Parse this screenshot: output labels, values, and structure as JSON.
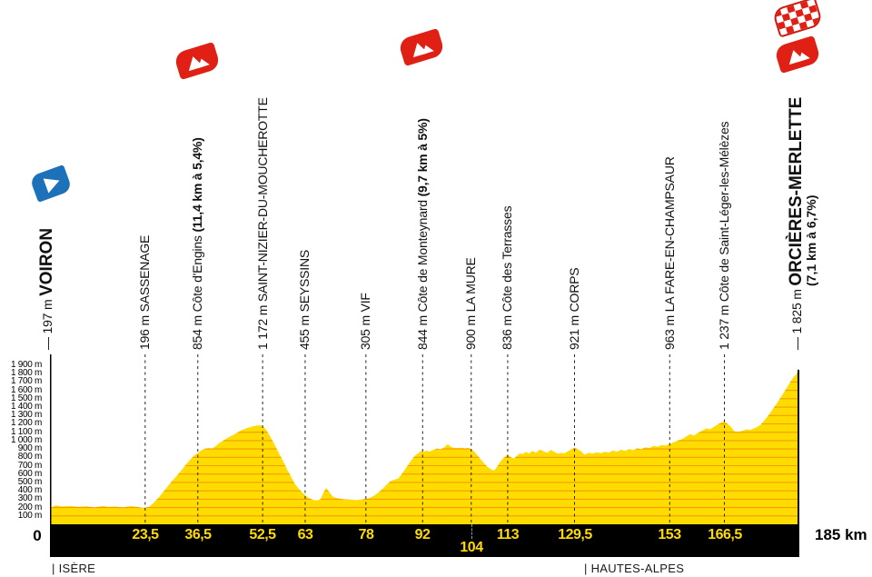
{
  "chart_data": {
    "type": "area",
    "x_unit": "km",
    "y_unit": "m",
    "x_range": [
      0,
      185
    ],
    "grid": "horizontal-100m",
    "legend": "none",
    "start_label": "0",
    "end_label": "185 km",
    "departments": [
      {
        "label": "| ISÈRE",
        "at_km": 0
      },
      {
        "label": "| HAUTES-ALPES",
        "at_km": 132
      }
    ],
    "colors": {
      "profile_fill": "#FFDC00",
      "gridline_on_fill": "#F59C00",
      "bar_background": "#000000",
      "bar_text": "#FFDB00",
      "climb_badge_red": "#E02015",
      "start_badge_blue": "#1D71B8",
      "dashed_line": "#222222"
    },
    "y_tick_values_m": [
      1900,
      1800,
      1700,
      1600,
      1500,
      1400,
      1300,
      1200,
      1100,
      1000,
      900,
      800,
      700,
      600,
      500,
      400,
      300,
      200,
      100
    ],
    "y_tick_labels": [
      "1 900 m",
      "1 800 m",
      "1 700 m",
      "1 600 m",
      "1 500 m",
      "1 400 m",
      "1 300 m",
      "1 200 m",
      "1 100 m",
      "1 000 m",
      "900 m",
      "800 m",
      "700 m",
      "600 m",
      "500 m",
      "400 m",
      "300 m",
      "200 m",
      "100 m"
    ],
    "waypoints": [
      {
        "km": 0,
        "km_label": "0",
        "elevation": "197 m",
        "name": "VOIRON",
        "stats": null,
        "kind": "start",
        "icon": "start-flag"
      },
      {
        "km": 23.5,
        "km_label": "23,5",
        "elevation": "196 m",
        "name": "SASSENAGE",
        "stats": null,
        "kind": "town",
        "icon": null
      },
      {
        "km": 36.5,
        "km_label": "36,5",
        "elevation": "854 m",
        "name": "Côte d'Engins",
        "stats": "(11,4 km à 5,4%)",
        "kind": "climb",
        "icon": "mountain"
      },
      {
        "km": 52.5,
        "km_label": "52,5",
        "elevation": "1 172 m",
        "name": "SAINT-NIZIER-DU-MOUCHEROTTE",
        "stats": null,
        "kind": "town",
        "icon": null
      },
      {
        "km": 63,
        "km_label": "63",
        "elevation": "455 m",
        "name": "SEYSSINS",
        "stats": null,
        "kind": "town",
        "icon": null
      },
      {
        "km": 78,
        "km_label": "78",
        "elevation": "305 m",
        "name": "VIF",
        "stats": null,
        "kind": "town",
        "icon": null
      },
      {
        "km": 92,
        "km_label": "92",
        "elevation": "844 m",
        "name": "Côte de Monteynard",
        "stats": "(9,7 km à 5%)",
        "kind": "climb",
        "icon": "mountain"
      },
      {
        "km": 104,
        "km_label": "104",
        "km_label_row": 2,
        "elevation": "900 m",
        "name": "LA MURE",
        "stats": null,
        "kind": "town",
        "icon": null
      },
      {
        "km": 113,
        "km_label": "113",
        "elevation": "836 m",
        "name": "Côte des Terrasses",
        "stats": null,
        "kind": "town",
        "icon": null
      },
      {
        "km": 129.5,
        "km_label": "129,5",
        "elevation": "921 m",
        "name": "CORPS",
        "stats": null,
        "kind": "town",
        "icon": null
      },
      {
        "km": 153,
        "km_label": "153",
        "elevation": "963 m",
        "name": "LA FARE-EN-CHAMPSAUR",
        "stats": null,
        "kind": "town",
        "icon": null
      },
      {
        "km": 166.5,
        "km_label": "166,5",
        "elevation": "1 237 m",
        "name": "Côte de Saint-Léger-les-Mélèzes",
        "stats": null,
        "kind": "town",
        "icon": null
      },
      {
        "km": 185,
        "km_label": "185 km",
        "elevation": "1 825 m",
        "name": "ORCIÈRES-MERLETTE",
        "stats": "(7,1 km à 6,7%)",
        "kind": "finish",
        "icon": "finish-flag+mountain"
      }
    ],
    "profile_points": [
      [
        0,
        197
      ],
      [
        1.5,
        228
      ],
      [
        3,
        213
      ],
      [
        5,
        222
      ],
      [
        7,
        208
      ],
      [
        9,
        217
      ],
      [
        11,
        204
      ],
      [
        13,
        220
      ],
      [
        14.5,
        208
      ],
      [
        16,
        214
      ],
      [
        18,
        203
      ],
      [
        20,
        218
      ],
      [
        21.5,
        208
      ],
      [
        22.7,
        199
      ],
      [
        23.5,
        200
      ],
      [
        24.5,
        212
      ],
      [
        25.5,
        252
      ],
      [
        27,
        330
      ],
      [
        28.5,
        420
      ],
      [
        30,
        510
      ],
      [
        31.5,
        592
      ],
      [
        33,
        680
      ],
      [
        34.5,
        770
      ],
      [
        35.8,
        832
      ],
      [
        36.5,
        852
      ],
      [
        37.2,
        880
      ],
      [
        38.2,
        902
      ],
      [
        39.2,
        912
      ],
      [
        40,
        906
      ],
      [
        41,
        938
      ],
      [
        42,
        978
      ],
      [
        43,
        1008
      ],
      [
        44,
        1038
      ],
      [
        45,
        1062
      ],
      [
        46,
        1090
      ],
      [
        47,
        1118
      ],
      [
        48,
        1140
      ],
      [
        49,
        1156
      ],
      [
        50,
        1170
      ],
      [
        51,
        1180
      ],
      [
        52,
        1183
      ],
      [
        52.6,
        1172
      ],
      [
        53.5,
        1120
      ],
      [
        54.5,
        1040
      ],
      [
        55.5,
        950
      ],
      [
        56.4,
        862
      ],
      [
        57.5,
        762
      ],
      [
        58.5,
        662
      ],
      [
        59.5,
        572
      ],
      [
        60.5,
        482
      ],
      [
        61.5,
        420
      ],
      [
        62.3,
        380
      ],
      [
        63,
        352
      ],
      [
        64,
        312
      ],
      [
        65,
        292
      ],
      [
        66,
        286
      ],
      [
        66.8,
        300
      ],
      [
        67.5,
        378
      ],
      [
        68.2,
        438
      ],
      [
        69,
        382
      ],
      [
        69.8,
        332
      ],
      [
        71,
        312
      ],
      [
        72.5,
        300
      ],
      [
        74,
        296
      ],
      [
        75.5,
        290
      ],
      [
        77,
        296
      ],
      [
        78,
        306
      ],
      [
        79,
        318
      ],
      [
        80,
        342
      ],
      [
        81,
        378
      ],
      [
        82,
        420
      ],
      [
        83,
        470
      ],
      [
        84,
        515
      ],
      [
        85,
        535
      ],
      [
        86,
        548
      ],
      [
        87,
        612
      ],
      [
        88,
        682
      ],
      [
        89,
        752
      ],
      [
        90,
        818
      ],
      [
        91,
        852
      ],
      [
        91.7,
        880
      ],
      [
        92.3,
        868
      ],
      [
        93,
        882
      ],
      [
        93.7,
        870
      ],
      [
        94.5,
        888
      ],
      [
        95.5,
        905
      ],
      [
        96.5,
        898
      ],
      [
        97.3,
        918
      ],
      [
        98.2,
        958
      ],
      [
        98.9,
        932
      ],
      [
        99.6,
        915
      ],
      [
        100.5,
        912
      ],
      [
        101.5,
        916
      ],
      [
        102.5,
        908
      ],
      [
        103.2,
        913
      ],
      [
        104,
        900
      ],
      [
        105,
        858
      ],
      [
        106,
        798
      ],
      [
        107,
        738
      ],
      [
        108,
        688
      ],
      [
        109,
        655
      ],
      [
        109.7,
        645
      ],
      [
        110.5,
        698
      ],
      [
        111.3,
        758
      ],
      [
        112,
        795
      ],
      [
        112.5,
        812
      ],
      [
        113,
        836
      ],
      [
        113.8,
        800
      ],
      [
        114.5,
        786
      ],
      [
        115.3,
        820
      ],
      [
        116,
        850
      ],
      [
        116.7,
        838
      ],
      [
        117.5,
        866
      ],
      [
        118.3,
        846
      ],
      [
        119,
        876
      ],
      [
        120,
        858
      ],
      [
        121,
        895
      ],
      [
        122,
        870
      ],
      [
        122.8,
        856
      ],
      [
        123.6,
        890
      ],
      [
        124.5,
        868
      ],
      [
        125.3,
        846
      ],
      [
        126.2,
        853
      ],
      [
        127,
        848
      ],
      [
        128,
        878
      ],
      [
        129,
        902
      ],
      [
        129.5,
        920
      ],
      [
        130.3,
        895
      ],
      [
        131,
        878
      ],
      [
        132,
        833
      ],
      [
        133,
        856
      ],
      [
        134,
        846
      ],
      [
        135,
        862
      ],
      [
        136,
        851
      ],
      [
        137,
        868
      ],
      [
        138,
        858
      ],
      [
        139,
        882
      ],
      [
        140,
        868
      ],
      [
        141,
        892
      ],
      [
        142,
        878
      ],
      [
        143,
        898
      ],
      [
        144,
        888
      ],
      [
        145,
        908
      ],
      [
        146,
        898
      ],
      [
        147,
        922
      ],
      [
        148,
        912
      ],
      [
        149,
        938
      ],
      [
        150,
        928
      ],
      [
        151,
        948
      ],
      [
        152,
        942
      ],
      [
        153,
        962
      ],
      [
        154,
        982
      ],
      [
        155,
        1000
      ],
      [
        156,
        1018
      ],
      [
        157,
        1048
      ],
      [
        158,
        1078
      ],
      [
        159,
        1062
      ],
      [
        160,
        1095
      ],
      [
        161,
        1118
      ],
      [
        162,
        1148
      ],
      [
        163,
        1138
      ],
      [
        164,
        1168
      ],
      [
        165,
        1198
      ],
      [
        166,
        1225
      ],
      [
        166.5,
        1237
      ],
      [
        167.3,
        1196
      ],
      [
        168,
        1172
      ],
      [
        169,
        1112
      ],
      [
        170,
        1106
      ],
      [
        171,
        1118
      ],
      [
        172,
        1136
      ],
      [
        172.8,
        1128
      ],
      [
        173.6,
        1142
      ],
      [
        174.5,
        1162
      ],
      [
        175.5,
        1192
      ],
      [
        176.5,
        1252
      ],
      [
        177.5,
        1312
      ],
      [
        178.5,
        1382
      ],
      [
        179.5,
        1452
      ],
      [
        180.5,
        1522
      ],
      [
        181.5,
        1602
      ],
      [
        182.5,
        1682
      ],
      [
        183.5,
        1756
      ],
      [
        184.2,
        1792
      ],
      [
        185,
        1825
      ]
    ]
  }
}
